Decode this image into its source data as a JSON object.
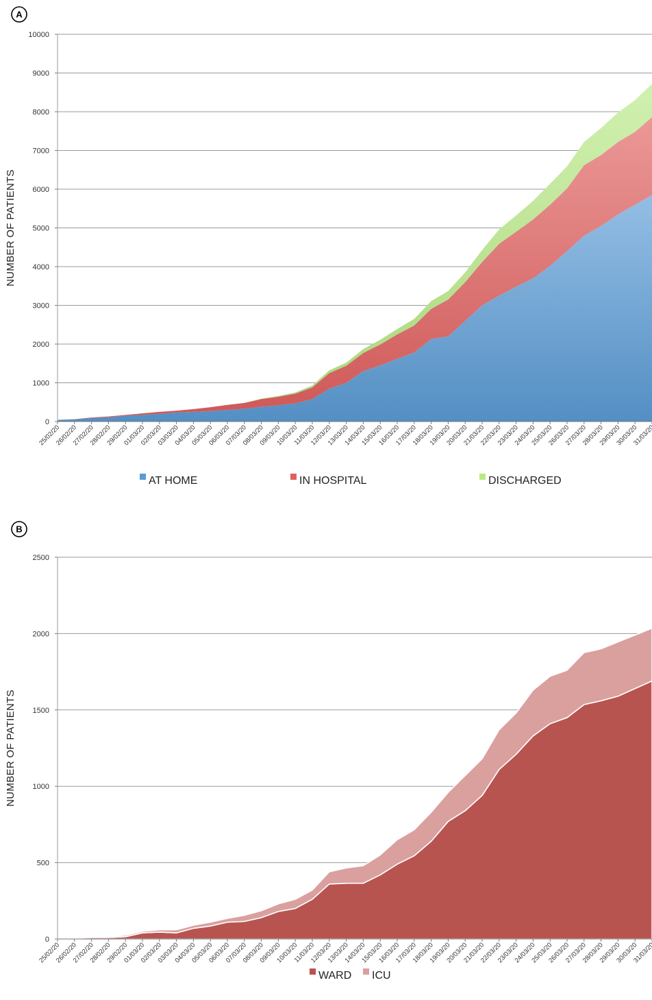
{
  "chart_data": [
    {
      "type": "area",
      "panel_label": "A",
      "ylabel": "NUMBER OF PATIENTS",
      "xlabel": "",
      "ylim": [
        0,
        10000
      ],
      "yticks": [
        0,
        1000,
        2000,
        3000,
        4000,
        5000,
        6000,
        7000,
        8000,
        9000,
        10000
      ],
      "grid": true,
      "stacked": true,
      "legend_position": "bottom",
      "categories": [
        "25/02/20",
        "26/02/20",
        "27/02/20",
        "28/02/20",
        "29/02/20",
        "01/03/20",
        "02/03/20",
        "03/03/20",
        "04/03/20",
        "05/03/20",
        "06/03/20",
        "07/03/20",
        "08/03/20",
        "09/03/20",
        "10/03/20",
        "11/03/20",
        "12/03/20",
        "13/03/20",
        "14/03/20",
        "15/03/20",
        "16/03/20",
        "17/03/20",
        "18/03/20",
        "19/03/20",
        "20/03/20",
        "21/03/20",
        "22/03/20",
        "23/03/20",
        "24/03/20",
        "25/03/20",
        "26/03/20",
        "27/03/20",
        "28/03/20",
        "29/03/20",
        "30/03/20",
        "31/03/20"
      ],
      "series": [
        {
          "name": "AT HOME",
          "color": "#5b9bd5",
          "values": [
            40,
            55,
            90,
            110,
            150,
            170,
            200,
            230,
            250,
            270,
            300,
            330,
            380,
            420,
            470,
            580,
            850,
            1000,
            1300,
            1450,
            1620,
            1780,
            2130,
            2200,
            2600,
            3000,
            3250,
            3480,
            3700,
            4020,
            4400,
            4800,
            5050,
            5350,
            5600,
            5850
          ]
        },
        {
          "name": "IN HOSPITAL",
          "color": "#e0605f",
          "values": [
            5,
            5,
            15,
            20,
            20,
            40,
            50,
            50,
            70,
            100,
            130,
            150,
            200,
            220,
            250,
            300,
            400,
            440,
            470,
            540,
            630,
            700,
            780,
            950,
            1000,
            1120,
            1340,
            1420,
            1520,
            1580,
            1620,
            1820,
            1830,
            1870,
            1880,
            2010
          ]
        },
        {
          "name": "DISCHARGED",
          "color": "#b8e986",
          "values": [
            0,
            0,
            0,
            0,
            0,
            0,
            0,
            0,
            0,
            0,
            0,
            0,
            10,
            20,
            30,
            50,
            70,
            80,
            100,
            120,
            140,
            170,
            200,
            220,
            250,
            310,
            370,
            420,
            480,
            540,
            570,
            600,
            700,
            760,
            820,
            860
          ]
        }
      ]
    },
    {
      "type": "area",
      "panel_label": "B",
      "ylabel": "NUMBER OF PATIENTS",
      "xlabel": "",
      "ylim": [
        0,
        2500
      ],
      "yticks": [
        0,
        500,
        1000,
        1500,
        2000,
        2500
      ],
      "grid": true,
      "stacked": true,
      "legend_position": "bottom",
      "categories": [
        "25/02/20",
        "26/02/20",
        "27/02/20",
        "28/02/20",
        "29/02/20",
        "01/03/20",
        "02/03/20",
        "03/03/20",
        "04/03/20",
        "05/03/20",
        "06/03/20",
        "07/03/20",
        "08/03/20",
        "09/03/20",
        "10/03/20",
        "11/03/20",
        "12/03/20",
        "13/03/20",
        "14/03/20",
        "15/03/20",
        "16/03/20",
        "17/03/20",
        "18/03/20",
        "19/03/20",
        "20/03/20",
        "21/03/20",
        "22/03/20",
        "23/03/20",
        "24/03/20",
        "25/03/20",
        "26/03/20",
        "27/03/20",
        "28/03/20",
        "29/03/20",
        "30/03/20",
        "31/03/20"
      ],
      "series": [
        {
          "name": "WARD",
          "color": "#b85450",
          "values": [
            5,
            5,
            10,
            10,
            15,
            40,
            45,
            40,
            70,
            85,
            110,
            115,
            140,
            180,
            200,
            260,
            360,
            365,
            365,
            420,
            490,
            545,
            640,
            770,
            840,
            940,
            1110,
            1210,
            1330,
            1410,
            1450,
            1535,
            1560,
            1590,
            1640,
            1690
          ]
        },
        {
          "name": "ICU",
          "color": "#d9a09e",
          "values": [
            0,
            0,
            5,
            5,
            10,
            10,
            15,
            20,
            20,
            25,
            25,
            40,
            45,
            50,
            60,
            60,
            80,
            100,
            115,
            130,
            160,
            170,
            190,
            190,
            230,
            240,
            260,
            270,
            300,
            310,
            310,
            340,
            340,
            355,
            350,
            345
          ]
        }
      ]
    }
  ]
}
